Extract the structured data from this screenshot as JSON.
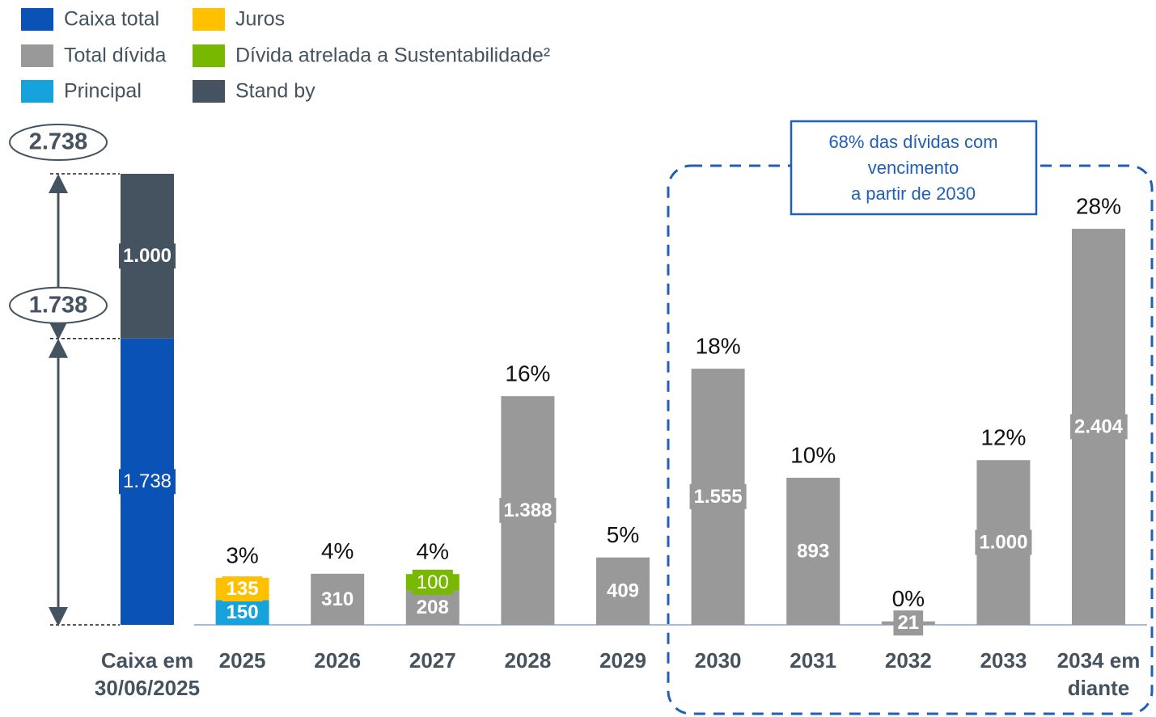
{
  "chart_data": {
    "type": "bar",
    "stacked": true,
    "categories": [
      "Caixa em 30/06/2025",
      "2025",
      "2026",
      "2027",
      "2028",
      "2029",
      "2030",
      "2031",
      "2032",
      "2033",
      "2034 em diante"
    ],
    "series": [
      {
        "name": "Caixa total",
        "color": "#0b52b7",
        "values": [
          1738,
          null,
          null,
          null,
          null,
          null,
          null,
          null,
          null,
          null,
          null
        ],
        "value_labels": [
          "1.738",
          null,
          null,
          null,
          null,
          null,
          null,
          null,
          null,
          null,
          null
        ]
      },
      {
        "name": "Stand by",
        "color": "#44535f",
        "values": [
          1000,
          null,
          null,
          null,
          null,
          null,
          null,
          null,
          null,
          null,
          null
        ],
        "value_labels": [
          "1.000",
          null,
          null,
          null,
          null,
          null,
          null,
          null,
          null,
          null,
          null
        ]
      },
      {
        "name": "Principal",
        "color": "#16a3dc",
        "values": [
          null,
          150,
          null,
          null,
          null,
          null,
          null,
          null,
          null,
          null,
          null
        ]
      },
      {
        "name": "Juros",
        "color": "#ffc000",
        "values": [
          null,
          135,
          null,
          null,
          null,
          null,
          null,
          null,
          null,
          null,
          null
        ]
      },
      {
        "name": "Total dívida",
        "color": "#999999",
        "values": [
          null,
          null,
          310,
          208,
          1388,
          409,
          1555,
          893,
          21,
          1000,
          2404
        ],
        "value_labels": [
          null,
          null,
          null,
          null,
          "1.388",
          null,
          "1.555",
          null,
          null,
          "1.000",
          "2.404"
        ]
      },
      {
        "name": "Dívida atrelada a Sustentabilidade²",
        "color": "#78b800",
        "values": [
          null,
          null,
          null,
          100,
          null,
          null,
          null,
          null,
          null,
          null,
          null
        ]
      }
    ],
    "share_labels": [
      null,
      "3%",
      "4%",
      "4%",
      "16%",
      "5%",
      "18%",
      "10%",
      "0%",
      "12%",
      "28%"
    ],
    "brackets": [
      {
        "value": 2738,
        "label": "2.738"
      },
      {
        "value": 1738,
        "label": "1.738"
      }
    ],
    "annotation": [
      "68% das dívidas com",
      "vencimento",
      "a partir de 2030"
    ],
    "ylim": [
      0,
      2738
    ]
  }
}
